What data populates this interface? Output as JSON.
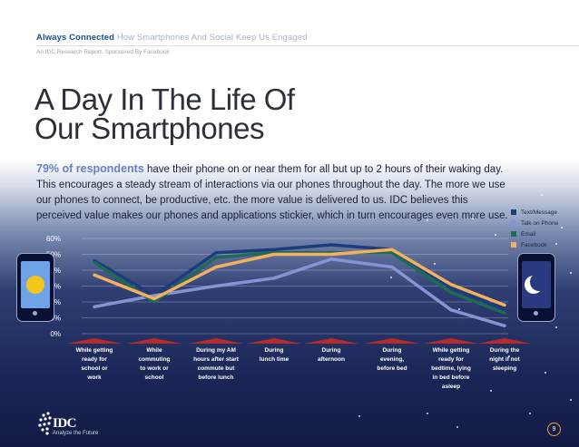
{
  "header": {
    "brand": "Always Connected",
    "subtitle": "How Smartphones And Social Keep Us Engaged",
    "report_note": "An IDC Research Report, Sponsored By Facebook"
  },
  "title_line1": "A Day In The Life Of",
  "title_line2": "Our Smartphones",
  "intro": {
    "stat": "79% of respondents",
    "text": " have their phone on or near them for all but up to 2 hours of their waking day. This encourages a steady stream of interactions via our phones throughout the day. The more we use our phones to connect, be productive, etc. the more value is delivered to us. IDC believes this perceived value makes our phones and applications stickier, which in turn encourages even more use."
  },
  "chart_data": {
    "type": "line",
    "categories": [
      "While getting ready for school or work",
      "While commuting to work or school",
      "During my AM hours after start commute but before lunch",
      "During lunch time",
      "During afternoon",
      "During evening, before bed",
      "While getting ready for bedtime, lying in bed before asleep",
      "During the night if not sleeping"
    ],
    "yticks": [
      "0%",
      "10%",
      "20%",
      "30%",
      "40%",
      "50%",
      "60%"
    ],
    "ylim": [
      0,
      60
    ],
    "grid": true,
    "legend_position": "right",
    "series": [
      {
        "name": "Text/Message",
        "color": "#1c3d7c",
        "values": [
          46,
          24,
          51,
          53,
          56,
          53,
          29,
          15
        ]
      },
      {
        "name": "Talk on Phone",
        "color": "#8594d2",
        "values": [
          17,
          24,
          30,
          35,
          47,
          42,
          15,
          5
        ]
      },
      {
        "name": "Email",
        "color": "#1f6a56",
        "values": [
          45,
          20,
          48,
          51,
          51,
          51,
          26,
          13
        ]
      },
      {
        "name": "Facebook",
        "color": "#f4b05c",
        "values": [
          37,
          22,
          42,
          50,
          50,
          53,
          31,
          18
        ]
      }
    ]
  },
  "category_labels": [
    [
      "While getting",
      "ready for",
      "school or",
      "work"
    ],
    [
      "While",
      "commuting",
      "to work or",
      "school"
    ],
    [
      "During my AM",
      "hours after start",
      "commute but",
      "before lunch"
    ],
    [
      "During",
      "lunch time"
    ],
    [
      "During",
      "afternoon"
    ],
    [
      "During",
      "evening,",
      "before bed"
    ],
    [
      "While getting",
      "ready for",
      "bedtime, lying",
      "in bed before",
      "asleep"
    ],
    [
      "During the",
      "night if not",
      "sleeping"
    ]
  ],
  "logo": {
    "text": "IDC",
    "tagline": "Analyze the Future"
  },
  "page_number": "9",
  "icons": {
    "day_phone": "sun-phone-icon",
    "night_phone": "moon-phone-icon"
  }
}
